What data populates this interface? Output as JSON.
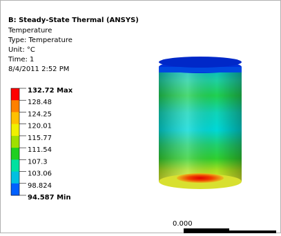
{
  "header": {
    "title": "B: Steady-State Thermal (ANSYS)",
    "lines": [
      "Temperature",
      "Type: Temperature",
      "Unit: °C",
      "Time: 1",
      "8/4/2011 2:52 PM"
    ]
  },
  "legend": {
    "labels": [
      "132.72 Max",
      "128.48",
      "124.25",
      "120.01",
      "115.77",
      "111.54",
      "107.3",
      "103.06",
      "98.824",
      "94.587 Min"
    ]
  },
  "scale": {
    "label": "0.000"
  }
}
